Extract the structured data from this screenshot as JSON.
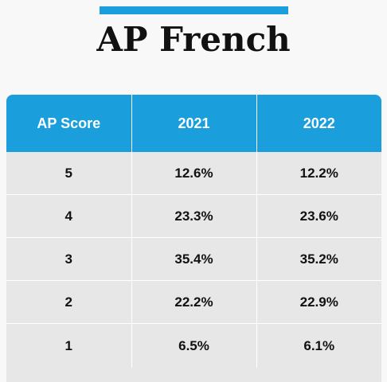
{
  "title": "AP French",
  "colors": {
    "accent": "#1a9fdc",
    "header_text": "#ffffff",
    "cell_bg": "#e7e7e7",
    "page_bg": "#f8f8f8"
  },
  "chart_data": {
    "type": "table",
    "title": "AP French",
    "columns": [
      "AP Score",
      "2021",
      "2022"
    ],
    "rows": [
      [
        "5",
        "12.6%",
        "12.2%"
      ],
      [
        "4",
        "23.3%",
        "23.6%"
      ],
      [
        "3",
        "35.4%",
        "35.2%"
      ],
      [
        "2",
        "22.2%",
        "22.9%"
      ],
      [
        "1",
        "6.5%",
        "6.1%"
      ]
    ]
  }
}
